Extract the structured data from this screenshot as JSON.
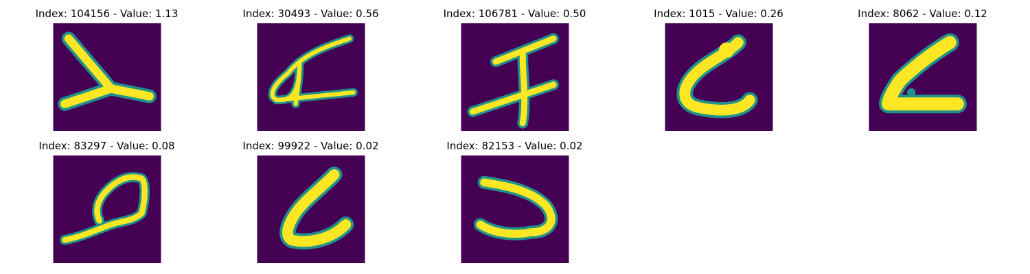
{
  "colors": {
    "background": "#440154",
    "stroke_core": "#fde725",
    "stroke_edge": "#21918c",
    "stroke_mid": "#5ec962"
  },
  "panels": [
    {
      "title": "Index: 104156 - Value: 1.13",
      "index": 104156,
      "value": 1.13,
      "glyph": "glyph-v-shape"
    },
    {
      "title": "Index: 30493 - Value: 0.56",
      "index": 30493,
      "value": 0.56,
      "glyph": "glyph-loop-cross"
    },
    {
      "title": "Index: 106781 - Value: 0.50",
      "index": 106781,
      "value": 0.5,
      "glyph": "glyph-double-cross"
    },
    {
      "title": "Index: 1015 - Value: 0.26",
      "index": 1015,
      "value": 0.26,
      "glyph": "glyph-l-hook"
    },
    {
      "title": "Index: 8062 - Value: 0.12",
      "index": 8062,
      "value": 0.12,
      "glyph": "glyph-boot"
    },
    {
      "title": "Index: 83297 - Value: 0.08",
      "index": 83297,
      "value": 0.08,
      "glyph": "glyph-loop-tail"
    },
    {
      "title": "Index: 99922 - Value: 0.02",
      "index": 99922,
      "value": 0.02,
      "glyph": "glyph-l-curve"
    },
    {
      "title": "Index: 82153 - Value: 0.02",
      "index": 82153,
      "value": 0.02,
      "glyph": "glyph-u-shape"
    }
  ]
}
